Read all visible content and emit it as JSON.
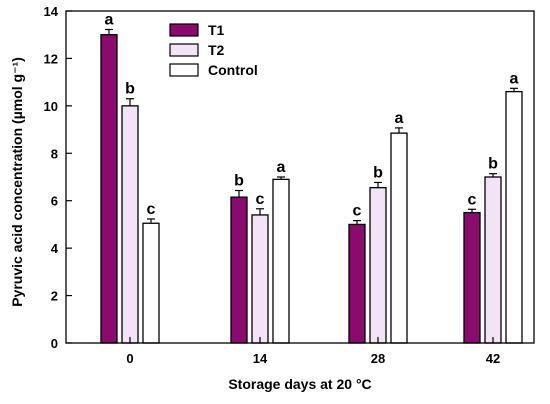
{
  "chart_data": {
    "type": "bar",
    "xlabel": "Storage days at 20 °C",
    "ylabel": "Pyruvic acid concentration (µmol g⁻¹)",
    "ylim": [
      0,
      14
    ],
    "yticks": [
      0,
      2,
      4,
      6,
      8,
      10,
      12,
      14
    ],
    "categories": [
      "0",
      "14",
      "28",
      "42"
    ],
    "legend_position": "top-left",
    "series": [
      {
        "name": "T1",
        "color": "#8b0a6e",
        "values": [
          13.0,
          6.15,
          5.0,
          5.5
        ],
        "errors": [
          0.22,
          0.28,
          0.16,
          0.14
        ],
        "letters": [
          "a",
          "b",
          "c",
          "c"
        ]
      },
      {
        "name": "T2",
        "color": "#f3e3f7",
        "values": [
          10.0,
          5.4,
          6.55,
          7.0
        ],
        "errors": [
          0.3,
          0.26,
          0.22,
          0.14
        ],
        "letters": [
          "b",
          "c",
          "b",
          "b"
        ]
      },
      {
        "name": "Control",
        "color": "#ffffff",
        "values": [
          5.05,
          6.9,
          8.85,
          10.6
        ],
        "errors": [
          0.18,
          0.1,
          0.22,
          0.14
        ],
        "letters": [
          "c",
          "a",
          "a",
          "a"
        ]
      }
    ]
  }
}
